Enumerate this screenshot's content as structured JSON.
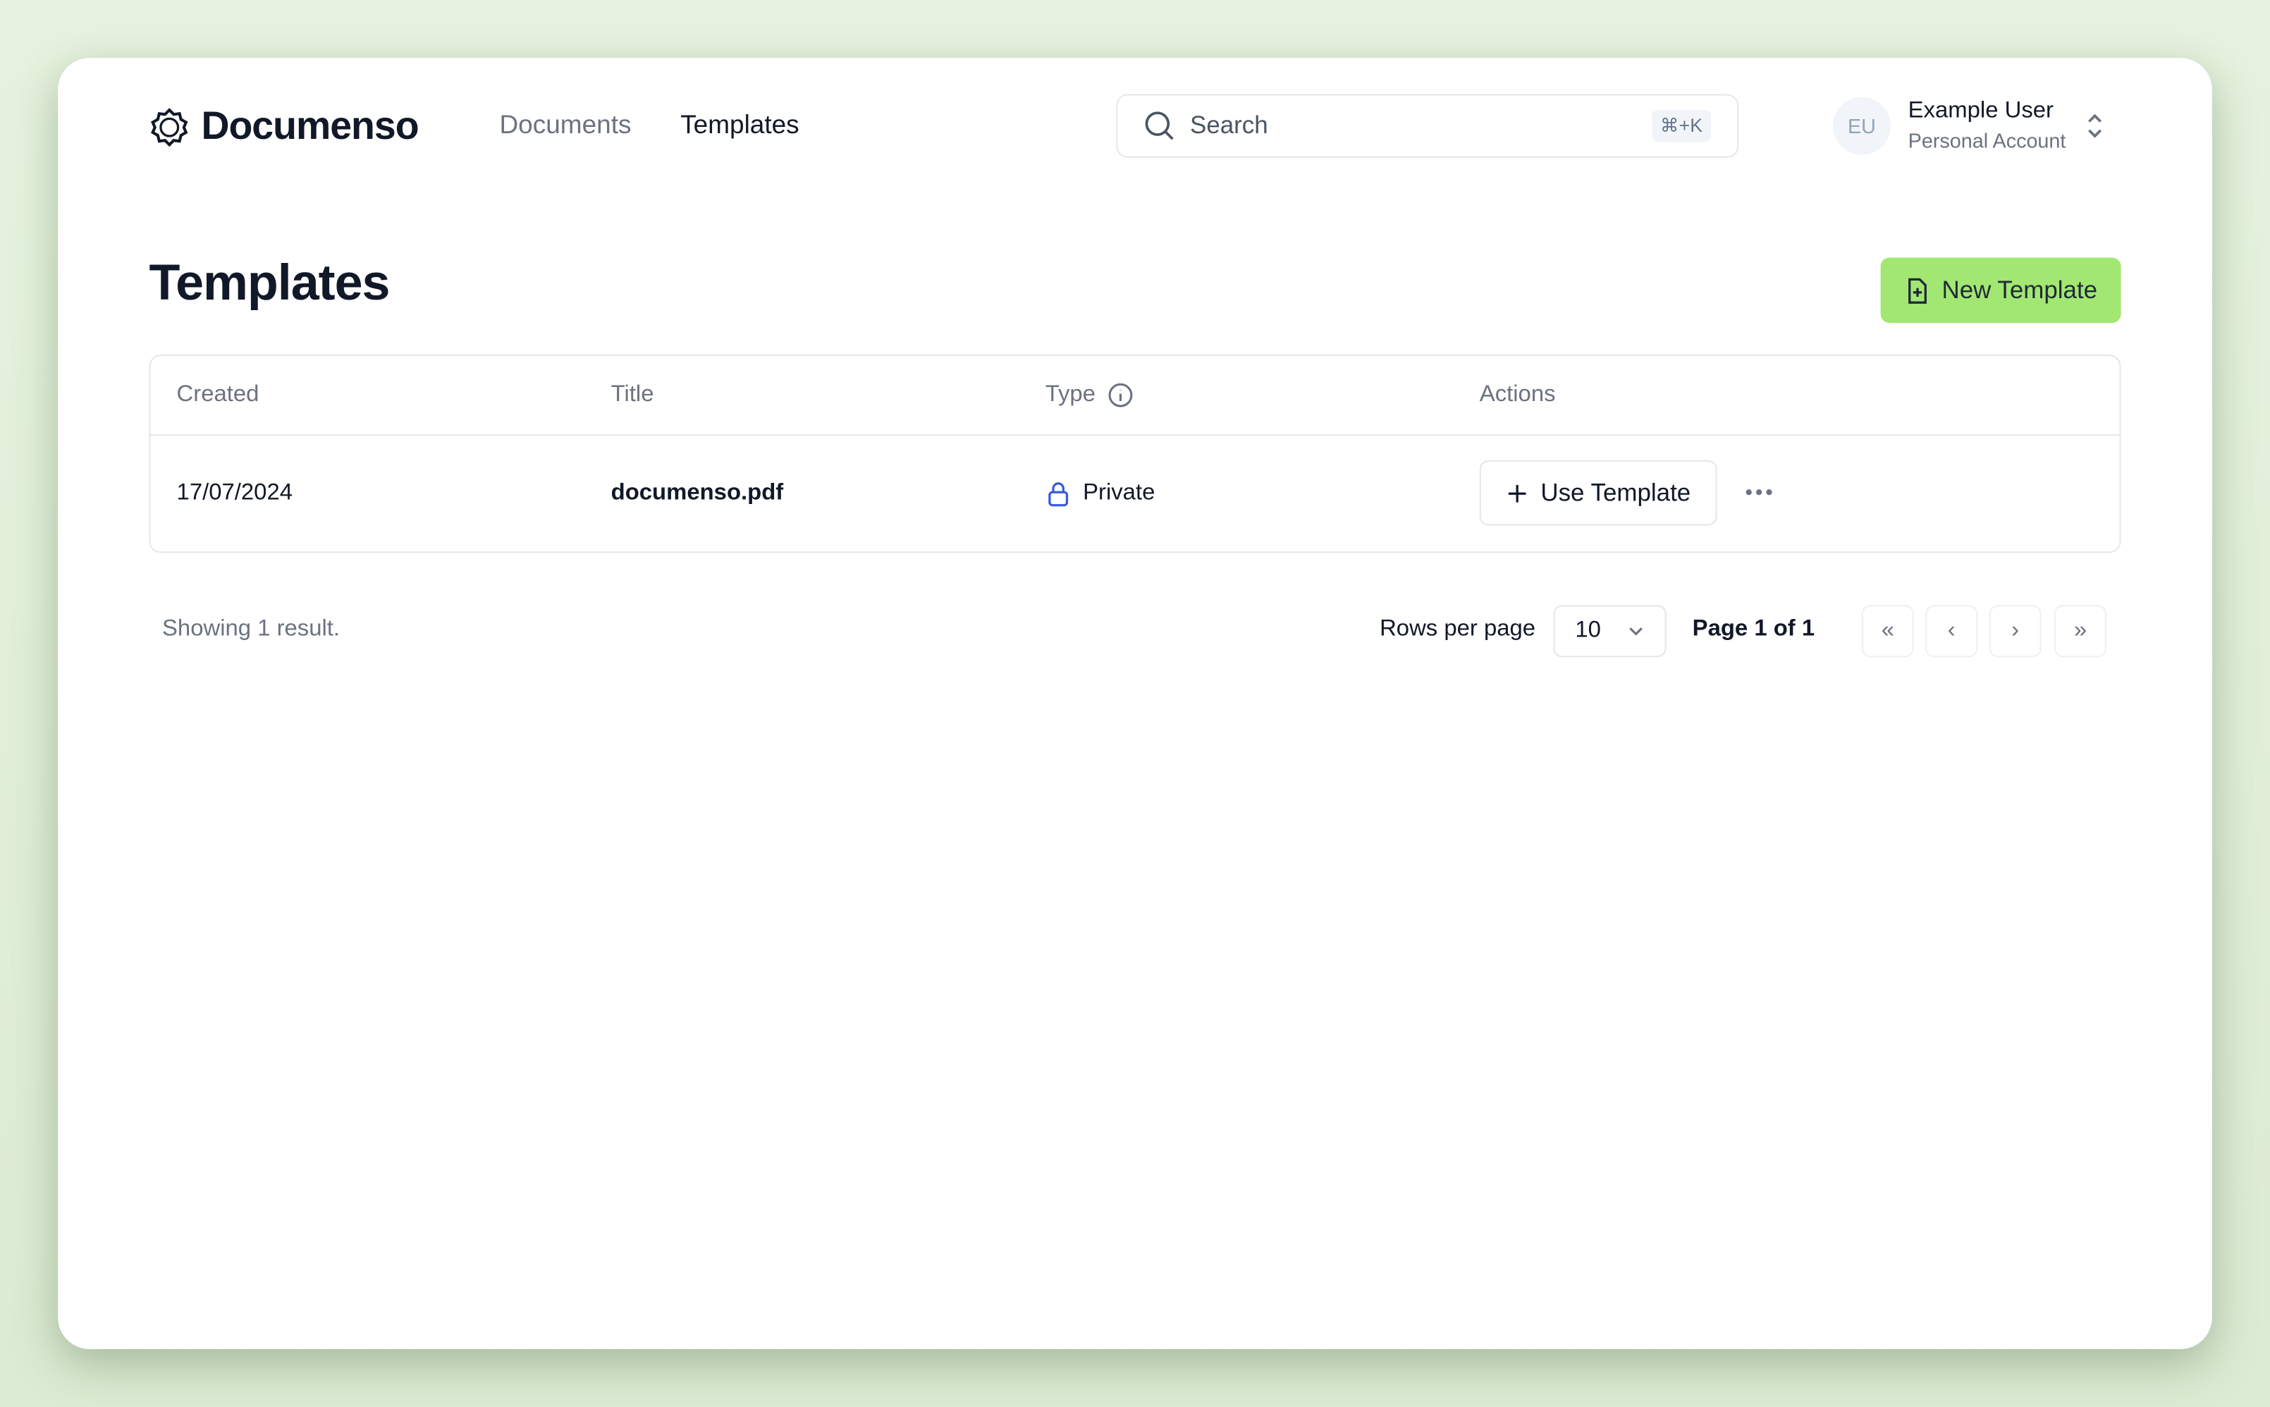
{
  "app": {
    "brand": "Documenso"
  },
  "nav": [
    {
      "label": "Documents",
      "active": false
    },
    {
      "label": "Templates",
      "active": true
    }
  ],
  "search": {
    "placeholder": "Search",
    "shortcut": "⌘+K"
  },
  "user": {
    "initials": "EU",
    "name": "Example User",
    "account": "Personal Account"
  },
  "page": {
    "title": "Templates",
    "new_button": "New Template"
  },
  "table": {
    "headers": [
      "Created",
      "Title",
      "Type",
      "Actions"
    ],
    "rows": [
      {
        "created": "17/07/2024",
        "title": "documenso.pdf",
        "type": "Private",
        "action": "Use Template"
      }
    ]
  },
  "footer": {
    "summary": "Showing 1 result.",
    "rows_per_page_label": "Rows per page",
    "rows_per_page": "10",
    "page_info": "Page 1 of 1"
  },
  "colors": {
    "accent": "#a2e771",
    "lock": "#3b5bdb"
  }
}
